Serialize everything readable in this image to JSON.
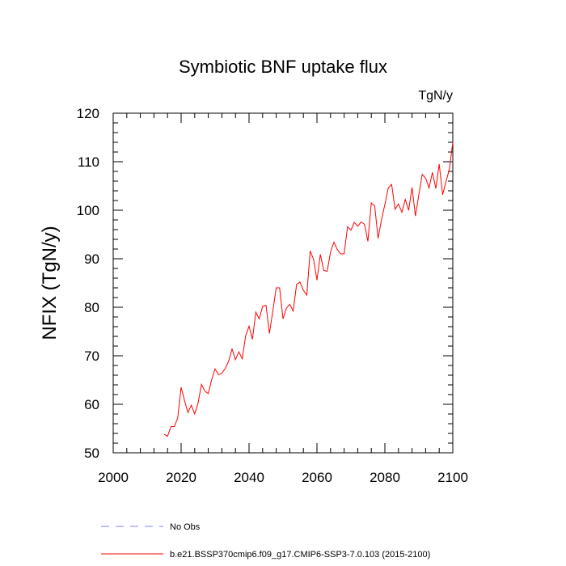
{
  "chart_data": {
    "type": "line",
    "title": "Symbiotic BNF uptake flux",
    "units_label": "TgN/y",
    "ylabel": "NFIX  (TgN/y)",
    "xlabel": "",
    "xlim": [
      2000,
      2100
    ],
    "ylim": [
      50,
      120
    ],
    "x_major_ticks": [
      2000,
      2020,
      2040,
      2060,
      2080,
      2100
    ],
    "y_major_ticks": [
      50,
      60,
      70,
      80,
      90,
      100,
      110,
      120
    ],
    "grid": false,
    "legend_position": "bottom",
    "series": [
      {
        "name": "b.e21.BSSP370cmip6.f09_g17.CMIP6-SSP3-7.0.103 (2015-2100)",
        "color": "#ff0000",
        "style": "solid",
        "x": [
          2015,
          2016,
          2017,
          2018,
          2019,
          2020,
          2021,
          2022,
          2023,
          2024,
          2025,
          2026,
          2027,
          2028,
          2029,
          2030,
          2031,
          2032,
          2033,
          2034,
          2035,
          2036,
          2037,
          2038,
          2039,
          2040,
          2041,
          2042,
          2043,
          2044,
          2045,
          2046,
          2047,
          2048,
          2049,
          2050,
          2051,
          2052,
          2053,
          2054,
          2055,
          2056,
          2057,
          2058,
          2059,
          2060,
          2061,
          2062,
          2063,
          2064,
          2065,
          2066,
          2067,
          2068,
          2069,
          2070,
          2071,
          2072,
          2073,
          2074,
          2075,
          2076,
          2077,
          2078,
          2079,
          2080,
          2081,
          2082,
          2083,
          2084,
          2085,
          2086,
          2087,
          2088,
          2089,
          2090,
          2091,
          2092,
          2093,
          2094,
          2095,
          2096,
          2097,
          2098,
          2099,
          2100
        ],
        "values": [
          53.8,
          53.4,
          55.4,
          55.4,
          57.2,
          63.5,
          60.8,
          58.3,
          59.8,
          58.0,
          60.3,
          64.1,
          62.7,
          62.2,
          65.1,
          67.3,
          66.1,
          66.4,
          67.4,
          68.9,
          71.4,
          69.2,
          70.8,
          69.4,
          74.1,
          76.1,
          73.4,
          79.0,
          77.6,
          80.2,
          80.4,
          74.6,
          79.2,
          84.0,
          84.0,
          77.6,
          79.8,
          80.6,
          79.2,
          84.7,
          85.2,
          83.5,
          82.5,
          91.6,
          89.9,
          85.6,
          90.9,
          87.6,
          87.4,
          91.4,
          93.4,
          91.9,
          91.0,
          91.0,
          96.6,
          95.9,
          97.5,
          96.7,
          97.6,
          97.1,
          93.6,
          101.5,
          100.9,
          94.2,
          98.0,
          101.2,
          104.6,
          105.3,
          100.2,
          101.3,
          99.6,
          102.2,
          100.0,
          104.7,
          98.8,
          103.2,
          107.4,
          106.6,
          104.6,
          107.8,
          104.5,
          109.5,
          103.2,
          105.9,
          108.5,
          114.0
        ]
      },
      {
        "name": "No Obs",
        "color": "#8080ff",
        "style": "dashed",
        "x": [],
        "values": []
      }
    ]
  }
}
